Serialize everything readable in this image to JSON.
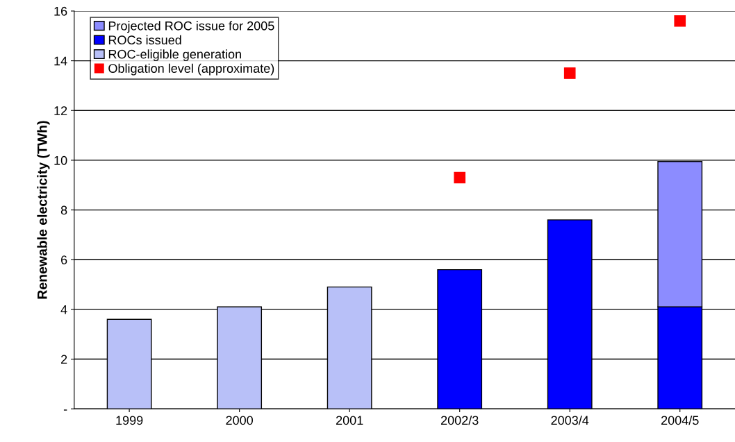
{
  "chart_data": {
    "type": "bar",
    "stacked": true,
    "ylabel": "Renewable electricity (TWh)",
    "categories": [
      "1999",
      "2000",
      "2001",
      "2002/3",
      "2003/4",
      "2004/5"
    ],
    "series": [
      {
        "name": "ROC-eligible generation",
        "color": "#b8c0f8",
        "values": [
          3.6,
          4.1,
          4.9,
          null,
          null,
          null
        ]
      },
      {
        "name": "ROCs issued",
        "color": "#0000ff",
        "values": [
          null,
          null,
          null,
          5.6,
          7.6,
          4.1
        ]
      },
      {
        "name": "Projected ROC issue for 2005",
        "color": "#8c8cff",
        "values": [
          null,
          null,
          null,
          null,
          null,
          5.85
        ]
      },
      {
        "name": "Obligation level (approximate)",
        "type": "scatter",
        "marker": "square",
        "color": "#ff0000",
        "values": [
          null,
          null,
          null,
          9.3,
          13.5,
          15.6
        ]
      }
    ],
    "ylim": [
      0,
      16
    ],
    "yticks": [
      {
        "value": 0,
        "label": "-"
      },
      2,
      4,
      6,
      8,
      10,
      12,
      14,
      16
    ],
    "grid": "y",
    "legend": "top left"
  }
}
